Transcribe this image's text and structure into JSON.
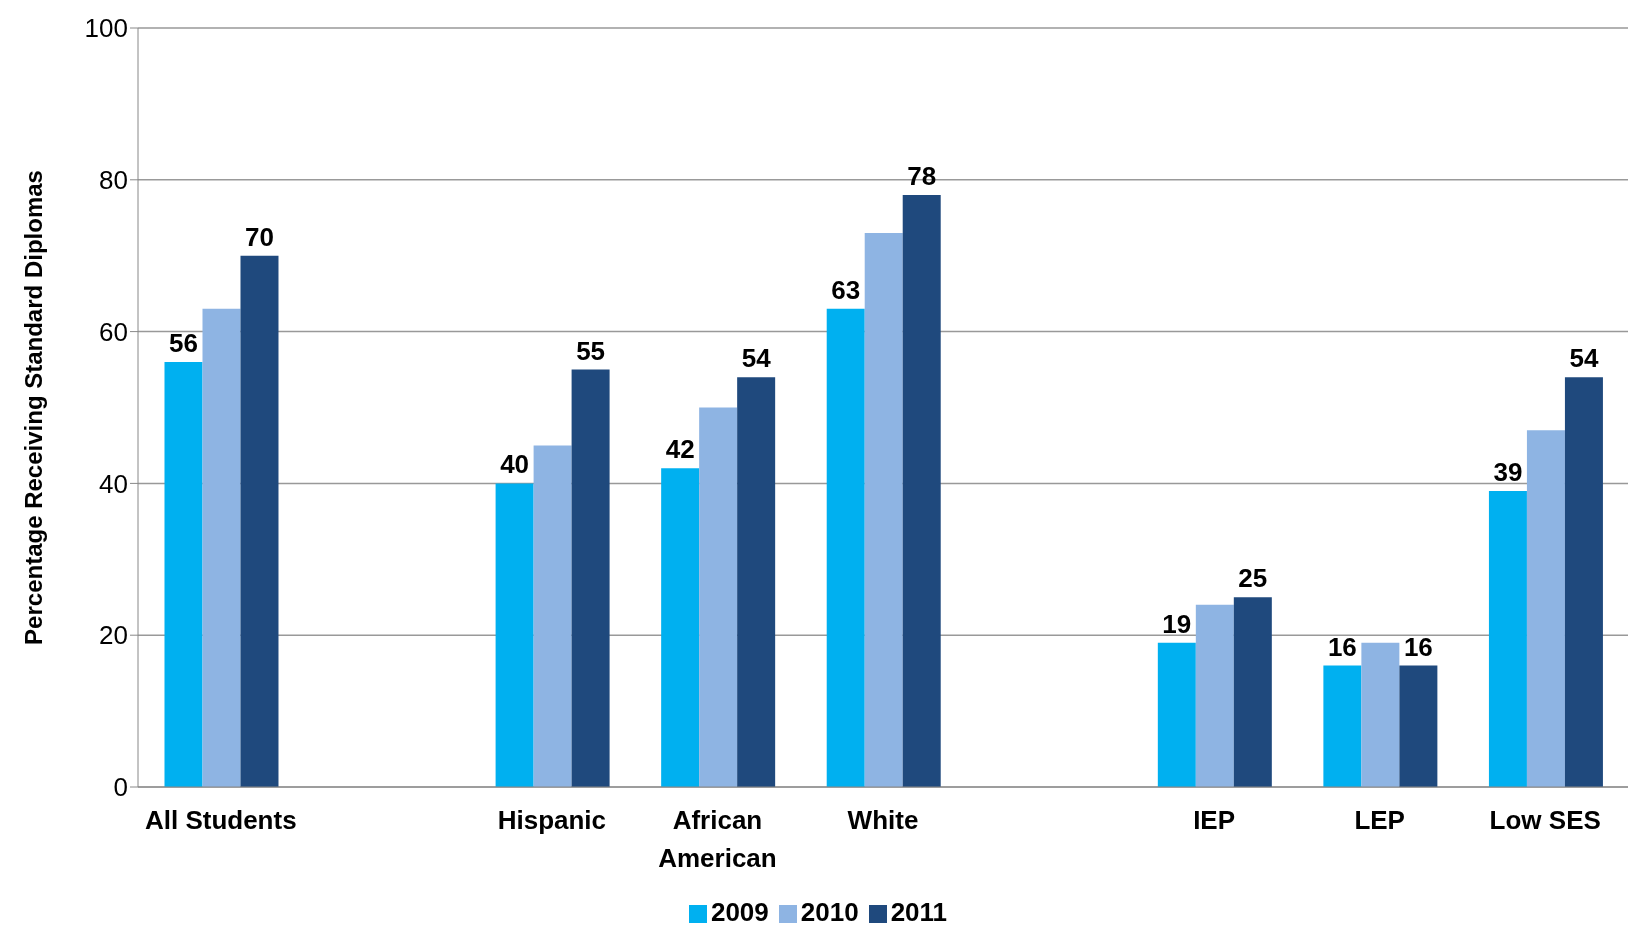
{
  "chart_data": {
    "type": "bar",
    "ylabel": "Percentage Receiving Standard Diplomas",
    "categories": [
      "All Students",
      null,
      "Hispanic",
      "African American",
      "White",
      null,
      "IEP",
      "LEP",
      "Low SES"
    ],
    "series": [
      {
        "name": "2009",
        "color": "#00b0f0",
        "values": [
          56,
          null,
          40,
          42,
          63,
          null,
          19,
          16,
          39
        ],
        "value_labels": [
          "56",
          null,
          "40",
          "42",
          "63",
          null,
          "19",
          "16",
          "39"
        ]
      },
      {
        "name": "2010",
        "color": "#8eb4e3",
        "values": [
          63,
          null,
          45,
          50,
          73,
          null,
          24,
          19,
          47
        ]
      },
      {
        "name": "2011",
        "color": "#1f497d",
        "values": [
          70,
          null,
          55,
          54,
          78,
          null,
          25,
          16,
          54
        ],
        "value_labels": [
          "70",
          null,
          "55",
          "54",
          "78",
          null,
          "25",
          "16",
          "54"
        ]
      }
    ],
    "ylim": [
      0,
      100
    ],
    "yticks": [
      0,
      20,
      40,
      60,
      80,
      100
    ],
    "grid": "y",
    "legend": "bottom"
  }
}
